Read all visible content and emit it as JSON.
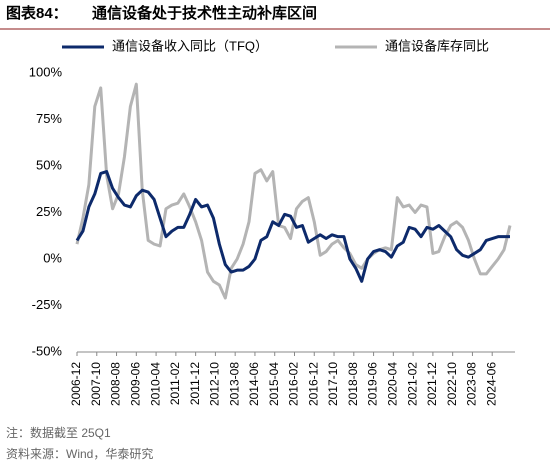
{
  "chart_data": {
    "type": "line",
    "header_label": "图表84：",
    "title": "通信设备处于技术性主动补库区间",
    "x": [
      "2006-12",
      "2007-03",
      "2007-06",
      "2007-09",
      "2007-12",
      "2008-03",
      "2008-06",
      "2008-09",
      "2008-12",
      "2009-03",
      "2009-06",
      "2009-09",
      "2009-12",
      "2010-03",
      "2010-06",
      "2010-09",
      "2010-12",
      "2011-03",
      "2011-06",
      "2011-09",
      "2011-12",
      "2012-03",
      "2012-06",
      "2012-09",
      "2012-12",
      "2013-03",
      "2013-06",
      "2013-09",
      "2013-12",
      "2014-03",
      "2014-06",
      "2014-09",
      "2014-12",
      "2015-03",
      "2015-06",
      "2015-09",
      "2015-12",
      "2016-03",
      "2016-06",
      "2016-09",
      "2016-12",
      "2017-03",
      "2017-06",
      "2017-09",
      "2017-12",
      "2018-03",
      "2018-06",
      "2018-09",
      "2018-12",
      "2019-03",
      "2019-06",
      "2019-09",
      "2019-12",
      "2020-03",
      "2020-06",
      "2020-09",
      "2020-12",
      "2021-03",
      "2021-06",
      "2021-09",
      "2021-12",
      "2022-03",
      "2022-06",
      "2022-09",
      "2022-12",
      "2023-03",
      "2023-06",
      "2023-09",
      "2023-12",
      "2024-03",
      "2024-06",
      "2024-09",
      "2024-12",
      "2025-03"
    ],
    "series": [
      {
        "name": "通信设备收入同比（TFQ）",
        "color": "#0d2a6b",
        "values": [
          10,
          15,
          28,
          35,
          46,
          47,
          38,
          33,
          29,
          28,
          34,
          37,
          36,
          32,
          22,
          12,
          15,
          17,
          17,
          24,
          32,
          28,
          29,
          22,
          8,
          -3,
          -7,
          -6,
          -6,
          -4,
          0,
          10,
          12,
          20,
          18,
          24,
          23,
          17,
          18,
          9,
          11,
          13,
          11,
          13,
          12,
          12,
          0,
          -5,
          -12,
          0,
          4,
          5,
          4,
          1,
          7,
          9,
          17,
          16,
          12,
          17,
          16,
          18,
          15,
          12,
          5,
          2,
          1,
          3,
          5,
          10,
          11,
          12,
          12,
          12
        ]
      },
      {
        "name": "通信设备库存同比",
        "color": "#b4b4b4",
        "values": [
          8,
          22,
          40,
          82,
          92,
          45,
          27,
          35,
          55,
          82,
          94,
          37,
          10,
          8,
          7,
          27,
          29,
          30,
          35,
          28,
          20,
          10,
          -7,
          -12,
          -14,
          -21,
          -5,
          0,
          8,
          20,
          46,
          48,
          42,
          47,
          18,
          17,
          11,
          27,
          31,
          33,
          20,
          2,
          4,
          8,
          10,
          6,
          3,
          -3,
          -5,
          0,
          3,
          5,
          6,
          5,
          33,
          28,
          29,
          25,
          29,
          28,
          3,
          4,
          12,
          18,
          20,
          17,
          10,
          0,
          -8,
          -8,
          -4,
          0,
          5,
          18
        ]
      }
    ],
    "xlim": [
      "2006-12",
      "2025-03"
    ],
    "xticks": [
      "2006-12",
      "2007-10",
      "2008-08",
      "2009-06",
      "2010-04",
      "2011-02",
      "2011-12",
      "2012-10",
      "2013-08",
      "2014-06",
      "2015-04",
      "2016-02",
      "2016-12",
      "2017-10",
      "2018-08",
      "2019-06",
      "2020-04",
      "2021-02",
      "2021-12",
      "2022-10",
      "2023-08",
      "2024-06"
    ],
    "ylim": [
      -50,
      100
    ],
    "yticks": [
      {
        "value": -50,
        "label": "-50%"
      },
      {
        "value": -25,
        "label": "-25%"
      },
      {
        "value": 0,
        "label": "0%"
      },
      {
        "value": 25,
        "label": "25%"
      },
      {
        "value": 50,
        "label": "50%"
      },
      {
        "value": 75,
        "label": "75%"
      },
      {
        "value": 100,
        "label": "100%"
      }
    ],
    "notes": [
      "注：数据截至 25Q1",
      "资料来源：Wind，华泰研究"
    ]
  }
}
